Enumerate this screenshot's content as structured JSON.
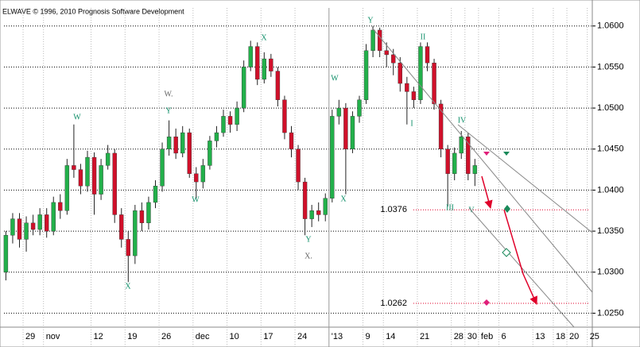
{
  "header": "ELWAVE © 1996, 2010 Prognosis Software Development",
  "chart_data": {
    "type": "candlestick",
    "categories": [
      null,
      null,
      null,
      "29",
      null,
      null,
      "nov",
      null,
      null,
      null,
      null,
      null,
      null,
      "12",
      null,
      null,
      null,
      null,
      "19",
      null,
      null,
      null,
      null,
      "26",
      null,
      null,
      null,
      null,
      "dec",
      null,
      null,
      null,
      null,
      "10",
      null,
      null,
      null,
      null,
      "17",
      null,
      null,
      null,
      null,
      "24",
      null,
      null,
      null,
      null,
      "'13",
      null,
      null,
      null,
      null,
      "9",
      null,
      null,
      "14",
      null,
      null,
      null,
      null,
      "21",
      null,
      null,
      null,
      null,
      "28",
      null,
      "30",
      null,
      "feb",
      null,
      null,
      "6",
      null,
      null,
      null,
      null,
      "13",
      null,
      null,
      "18",
      null,
      "20",
      null,
      null,
      "25"
    ],
    "open": [
      1.03,
      1.0345,
      1.0365,
      1.034,
      1.036,
      1.0352,
      1.037,
      1.035,
      1.0385,
      1.0375,
      1.043,
      1.0425,
      1.0405,
      1.044,
      1.0395,
      1.043,
      1.0445,
      1.037,
      1.034,
      1.032,
      1.0375,
      1.036,
      1.0385,
      1.0405,
      1.045,
      1.0465,
      1.0445,
      1.047,
      1.042,
      1.041,
      1.043,
      1.046,
      1.047,
      1.049,
      1.048,
      1.05,
      1.055,
      1.0575,
      1.0535,
      1.056,
      1.0545,
      1.051,
      1.047,
      1.045,
      1.041,
      1.0365,
      1.0375,
      1.037,
      1.039,
      1.049,
      1.05,
      1.045,
      1.049,
      1.051,
      1.057,
      1.0595,
      1.057,
      1.0565,
      1.0555,
      1.053,
      1.052,
      1.051,
      1.0575,
      1.0555,
      1.0505,
      1.045,
      1.042,
      1.0445,
      1.0465,
      1.042,
      null,
      null,
      null,
      null,
      null,
      null,
      null,
      null,
      null,
      null,
      null,
      null,
      null,
      null,
      null,
      null,
      null
    ],
    "high": [
      1.035,
      1.0372,
      1.0372,
      1.0368,
      1.037,
      1.0378,
      1.0378,
      1.0392,
      1.0395,
      1.0438,
      1.048,
      1.0432,
      1.0448,
      1.0446,
      1.0438,
      1.0455,
      1.045,
      1.0378,
      1.035,
      1.0382,
      1.0385,
      1.0392,
      1.0412,
      1.0458,
      1.0485,
      1.0475,
      1.0478,
      1.0475,
      1.0428,
      1.0438,
      1.0466,
      1.0478,
      1.0498,
      1.0496,
      1.0508,
      1.0558,
      1.0582,
      1.058,
      1.0568,
      1.0566,
      1.055,
      1.0515,
      1.0478,
      1.0455,
      1.0415,
      1.0382,
      1.0385,
      1.0396,
      1.0498,
      1.051,
      1.0506,
      1.0496,
      1.0515,
      1.0578,
      1.06,
      1.0598,
      1.058,
      1.0572,
      1.0562,
      1.0538,
      1.0526,
      1.058,
      1.058,
      1.056,
      1.051,
      1.0455,
      1.0452,
      1.0472,
      1.047,
      1.0438,
      null,
      null,
      null,
      null,
      null,
      null,
      null,
      null,
      null,
      null,
      null,
      null,
      null,
      null,
      null,
      null,
      null
    ],
    "low": [
      1.029,
      1.0335,
      1.033,
      1.0325,
      1.0345,
      1.0345,
      1.0342,
      1.0345,
      1.0365,
      1.037,
      1.0415,
      1.0395,
      1.0398,
      1.037,
      1.0388,
      1.0425,
      1.036,
      1.033,
      1.0288,
      1.031,
      1.035,
      1.0352,
      1.0378,
      1.0398,
      1.0442,
      1.0438,
      1.044,
      1.0415,
      1.039,
      1.0402,
      1.0425,
      1.0452,
      1.0465,
      1.047,
      1.0472,
      1.0495,
      1.0545,
      1.0528,
      1.053,
      1.0538,
      1.0502,
      1.0462,
      1.044,
      1.04,
      1.0345,
      1.0355,
      1.0362,
      1.0362,
      1.0385,
      1.048,
      1.0395,
      1.0445,
      1.0482,
      1.0505,
      1.0562,
      1.0562,
      1.055,
      1.054,
      1.052,
      1.048,
      1.05,
      1.0505,
      1.0545,
      1.0498,
      1.044,
      1.038,
      1.0412,
      1.0438,
      1.0412,
      1.0405,
      null,
      null,
      null,
      null,
      null,
      null,
      null,
      null,
      null,
      null,
      null,
      null,
      null,
      null,
      null,
      null,
      null
    ],
    "close": [
      1.0345,
      1.0365,
      1.034,
      1.036,
      1.0352,
      1.037,
      1.035,
      1.0385,
      1.0375,
      1.043,
      1.0425,
      1.0405,
      1.044,
      1.0395,
      1.043,
      1.0445,
      1.037,
      1.034,
      1.032,
      1.0375,
      1.036,
      1.0385,
      1.0405,
      1.045,
      1.0465,
      1.0445,
      1.047,
      1.042,
      1.041,
      1.043,
      1.046,
      1.047,
      1.049,
      1.048,
      1.05,
      1.055,
      1.0575,
      1.0535,
      1.056,
      1.0545,
      1.051,
      1.047,
      1.045,
      1.041,
      1.0365,
      1.0375,
      1.037,
      1.039,
      1.049,
      1.05,
      1.045,
      1.049,
      1.051,
      1.057,
      1.0595,
      1.057,
      1.0565,
      1.0555,
      1.053,
      1.052,
      1.051,
      1.0575,
      1.0555,
      1.0505,
      1.045,
      1.042,
      1.0445,
      1.0465,
      1.042,
      1.043,
      null,
      null,
      null,
      null,
      null,
      null,
      null,
      null,
      null,
      null,
      null,
      null,
      null,
      null,
      null,
      null,
      null
    ],
    "up_color": "#22b04a",
    "down_color": "#d0102a",
    "ylim": [
      1.0233,
      1.0622
    ],
    "yticks": [
      {
        "value": 1.025,
        "label": "1.0250"
      },
      {
        "value": 1.03,
        "label": "1.0300"
      },
      {
        "value": 1.035,
        "label": "1.0350"
      },
      {
        "value": 1.04,
        "label": "1.0400"
      },
      {
        "value": 1.045,
        "label": "1.0450"
      },
      {
        "value": 1.05,
        "label": "1.0500"
      },
      {
        "value": 1.055,
        "label": "1.0550"
      },
      {
        "value": 1.06,
        "label": "1.0600"
      }
    ],
    "grid": true,
    "levels": [
      1.0376,
      1.0262
    ],
    "level_color": "#e0002a",
    "annotations": [
      "W",
      "Y",
      "W.",
      "W",
      "X",
      "X",
      "Y",
      "X.",
      "W",
      "X",
      "Y",
      "II",
      "I",
      "IV",
      "III",
      "V"
    ]
  }
}
